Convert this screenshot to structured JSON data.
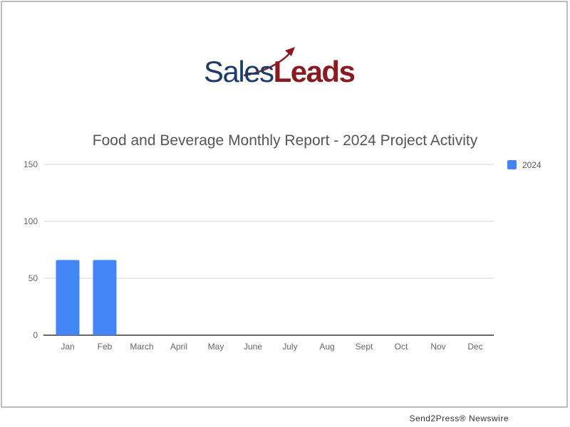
{
  "logo": {
    "sales": "Sales",
    "leads": "Leads"
  },
  "footer": {
    "credit": "Send2Press® Newswire"
  },
  "colors": {
    "bar": "#4285f4",
    "logo_blue": "#1b3b6b",
    "logo_red": "#8a1a1f"
  },
  "chart_data": {
    "type": "bar",
    "title": "Food and Beverage Monthly Report - 2024 Project Activity",
    "categories": [
      "Jan",
      "Feb",
      "March",
      "April",
      "May",
      "June",
      "July",
      "Aug",
      "Sept",
      "Oct",
      "Nov",
      "Dec"
    ],
    "series": [
      {
        "name": "2024",
        "values": [
          66,
          66,
          0,
          0,
          0,
          0,
          0,
          0,
          0,
          0,
          0,
          0
        ]
      }
    ],
    "yticks": [
      0,
      50,
      100,
      150
    ],
    "ylim": [
      0,
      150
    ],
    "grid": true,
    "legend": "right"
  }
}
